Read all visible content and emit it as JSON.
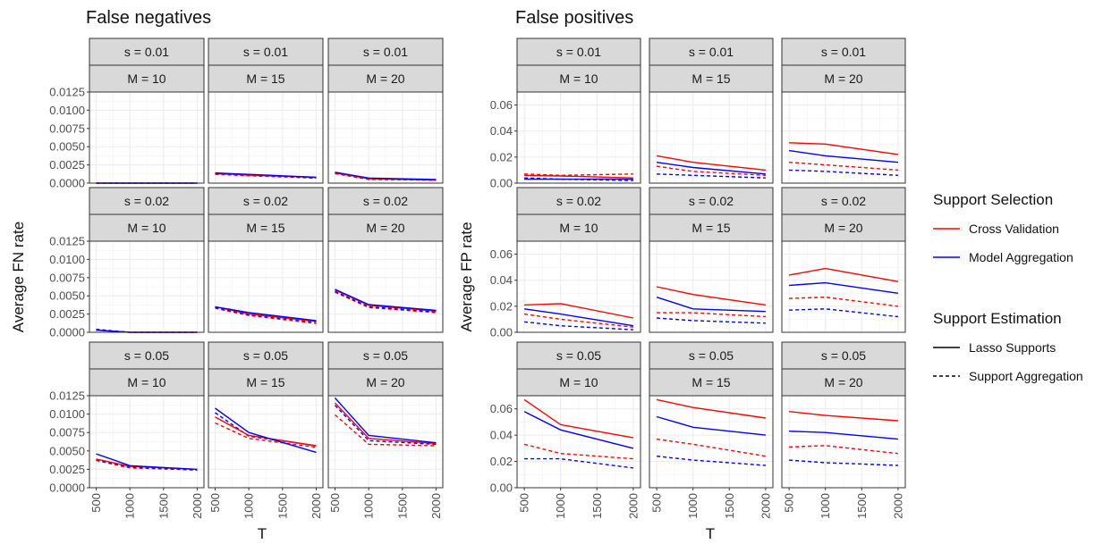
{
  "chart_data": [
    {
      "type": "line",
      "title": "False negatives",
      "xlabel": "T",
      "ylabel": "Average FN rate",
      "x": [
        500,
        1000,
        2000
      ],
      "x_ticks": [
        "500",
        "1000",
        "1500",
        "2000"
      ],
      "x_tick_values": [
        500,
        1000,
        1500,
        2000
      ],
      "ylim": [
        0,
        0.0125
      ],
      "y_ticks": [
        "0.0000",
        "0.0025",
        "0.0050",
        "0.0075",
        "0.0100",
        "0.0125"
      ],
      "y_tick_values": [
        0,
        0.0025,
        0.005,
        0.0075,
        0.01,
        0.0125
      ],
      "grid": true,
      "panels": [
        {
          "s_label": "s = 0.01",
          "m_label": "M = 10",
          "series": {
            "cv_lasso": [
              0.0,
              0.0,
              0.0
            ],
            "ma_lasso": [
              0.0,
              0.0,
              0.0
            ],
            "cv_agg": [
              0.0,
              0.0,
              0.0
            ],
            "ma_agg": [
              0.0,
              0.0,
              0.0
            ]
          }
        },
        {
          "s_label": "s = 0.01",
          "m_label": "M = 15",
          "series": {
            "cv_lasso": [
              0.0013,
              0.0011,
              0.0008
            ],
            "ma_lasso": [
              0.0014,
              0.0012,
              0.0008
            ],
            "cv_agg": [
              0.0012,
              0.001,
              0.0007
            ],
            "ma_agg": [
              0.0013,
              0.0011,
              0.0007
            ]
          }
        },
        {
          "s_label": "s = 0.01",
          "m_label": "M = 20",
          "series": {
            "cv_lasso": [
              0.0014,
              0.0006,
              0.0004
            ],
            "ma_lasso": [
              0.0015,
              0.0007,
              0.0005
            ],
            "cv_agg": [
              0.0013,
              0.0005,
              0.0004
            ],
            "ma_agg": [
              0.0014,
              0.0006,
              0.0004
            ]
          }
        },
        {
          "s_label": "s = 0.02",
          "m_label": "M = 10",
          "series": {
            "cv_lasso": [
              0.0003,
              0.0,
              0.0
            ],
            "ma_lasso": [
              0.0003,
              0.0,
              0.0
            ],
            "cv_agg": [
              0.0004,
              0.0,
              0.0
            ],
            "ma_agg": [
              0.0004,
              0.0,
              0.0
            ]
          }
        },
        {
          "s_label": "s = 0.02",
          "m_label": "M = 15",
          "series": {
            "cv_lasso": [
              0.0035,
              0.0025,
              0.0015
            ],
            "ma_lasso": [
              0.0035,
              0.0027,
              0.0016
            ],
            "cv_agg": [
              0.0033,
              0.0023,
              0.0012
            ],
            "ma_agg": [
              0.0034,
              0.0024,
              0.0014
            ]
          }
        },
        {
          "s_label": "s = 0.02",
          "m_label": "M = 20",
          "series": {
            "cv_lasso": [
              0.0058,
              0.0037,
              0.0029
            ],
            "ma_lasso": [
              0.0059,
              0.0038,
              0.003
            ],
            "cv_agg": [
              0.0055,
              0.0034,
              0.0027
            ],
            "ma_agg": [
              0.0056,
              0.0035,
              0.0028
            ]
          }
        },
        {
          "s_label": "s = 0.05",
          "m_label": "M = 10",
          "series": {
            "cv_lasso": [
              0.0039,
              0.0029,
              0.0025
            ],
            "ma_lasso": [
              0.0046,
              0.003,
              0.0025
            ],
            "cv_agg": [
              0.0037,
              0.0027,
              0.0024
            ],
            "ma_agg": [
              0.0038,
              0.0028,
              0.0024
            ]
          }
        },
        {
          "s_label": "s = 0.05",
          "m_label": "M = 15",
          "series": {
            "cv_lasso": [
              0.0096,
              0.0071,
              0.0057
            ],
            "ma_lasso": [
              0.0108,
              0.0075,
              0.0048
            ],
            "cv_agg": [
              0.0088,
              0.0067,
              0.0055
            ],
            "ma_agg": [
              0.0102,
              0.007,
              0.0057
            ]
          }
        },
        {
          "s_label": "s = 0.05",
          "m_label": "M = 20",
          "series": {
            "cv_lasso": [
              0.0115,
              0.0067,
              0.006
            ],
            "ma_lasso": [
              0.0122,
              0.0071,
              0.0061
            ],
            "cv_agg": [
              0.0099,
              0.0059,
              0.0057
            ],
            "ma_agg": [
              0.0112,
              0.0064,
              0.0059
            ]
          }
        }
      ]
    },
    {
      "type": "line",
      "title": "False positives",
      "xlabel": "T",
      "ylabel": "Average FP rate",
      "x": [
        500,
        1000,
        2000
      ],
      "x_ticks": [
        "500",
        "1000",
        "1500",
        "2000"
      ],
      "x_tick_values": [
        500,
        1000,
        1500,
        2000
      ],
      "ylim": [
        0,
        0.07
      ],
      "y_ticks": [
        "0.00",
        "0.02",
        "0.04",
        "0.06"
      ],
      "y_tick_values": [
        0,
        0.02,
        0.04,
        0.06
      ],
      "grid": true,
      "panels": [
        {
          "s_label": "s = 0.01",
          "m_label": "M = 10",
          "series": {
            "cv_lasso": [
              0.006,
              0.0055,
              0.004
            ],
            "ma_lasso": [
              0.003,
              0.003,
              0.003
            ],
            "cv_agg": [
              0.007,
              0.006,
              0.007
            ],
            "ma_agg": [
              0.004,
              0.003,
              0.002
            ]
          }
        },
        {
          "s_label": "s = 0.01",
          "m_label": "M = 15",
          "series": {
            "cv_lasso": [
              0.021,
              0.016,
              0.01
            ],
            "ma_lasso": [
              0.016,
              0.012,
              0.007
            ],
            "cv_agg": [
              0.013,
              0.009,
              0.006
            ],
            "ma_agg": [
              0.007,
              0.006,
              0.004
            ]
          }
        },
        {
          "s_label": "s = 0.01",
          "m_label": "M = 20",
          "series": {
            "cv_lasso": [
              0.031,
              0.03,
              0.022
            ],
            "ma_lasso": [
              0.025,
              0.021,
              0.016
            ],
            "cv_agg": [
              0.016,
              0.014,
              0.01
            ],
            "ma_agg": [
              0.01,
              0.009,
              0.006
            ]
          }
        },
        {
          "s_label": "s = 0.02",
          "m_label": "M = 10",
          "series": {
            "cv_lasso": [
              0.021,
              0.022,
              0.011
            ],
            "ma_lasso": [
              0.018,
              0.014,
              0.005
            ],
            "cv_agg": [
              0.014,
              0.01,
              0.004
            ],
            "ma_agg": [
              0.008,
              0.005,
              0.002
            ]
          }
        },
        {
          "s_label": "s = 0.02",
          "m_label": "M = 15",
          "series": {
            "cv_lasso": [
              0.035,
              0.029,
              0.021
            ],
            "ma_lasso": [
              0.027,
              0.018,
              0.016
            ],
            "cv_agg": [
              0.015,
              0.015,
              0.012
            ],
            "ma_agg": [
              0.011,
              0.009,
              0.007
            ]
          }
        },
        {
          "s_label": "s = 0.02",
          "m_label": "M = 20",
          "series": {
            "cv_lasso": [
              0.044,
              0.049,
              0.039
            ],
            "ma_lasso": [
              0.036,
              0.038,
              0.03
            ],
            "cv_agg": [
              0.026,
              0.027,
              0.02
            ],
            "ma_agg": [
              0.017,
              0.018,
              0.012
            ]
          }
        },
        {
          "s_label": "s = 0.05",
          "m_label": "M = 10",
          "series": {
            "cv_lasso": [
              0.067,
              0.048,
              0.038
            ],
            "ma_lasso": [
              0.058,
              0.044,
              0.03
            ],
            "cv_agg": [
              0.033,
              0.026,
              0.022
            ],
            "ma_agg": [
              0.022,
              0.022,
              0.015
            ]
          }
        },
        {
          "s_label": "s = 0.05",
          "m_label": "M = 15",
          "series": {
            "cv_lasso": [
              0.067,
              0.061,
              0.053
            ],
            "ma_lasso": [
              0.054,
              0.046,
              0.04
            ],
            "cv_agg": [
              0.037,
              0.033,
              0.024
            ],
            "ma_agg": [
              0.024,
              0.021,
              0.017
            ]
          }
        },
        {
          "s_label": "s = 0.05",
          "m_label": "M = 20",
          "series": {
            "cv_lasso": [
              0.058,
              0.055,
              0.051
            ],
            "ma_lasso": [
              0.043,
              0.042,
              0.037
            ],
            "cv_agg": [
              0.031,
              0.032,
              0.026
            ],
            "ma_agg": [
              0.021,
              0.019,
              0.017
            ]
          }
        }
      ]
    }
  ],
  "legend": {
    "placement": "right",
    "color_title": "Support Selection",
    "color_items": [
      {
        "label": "Cross Validation",
        "color": "#ff0000"
      },
      {
        "label": "Model Aggregation",
        "color": "#0000ff"
      }
    ],
    "linetype_title": "Support Estimation",
    "linetype_items": [
      {
        "label": "Lasso Supports",
        "dash": "solid"
      },
      {
        "label": "Support Aggregation",
        "dash": "dashed"
      }
    ]
  },
  "series_styles": {
    "cv_lasso": {
      "color": "#ff0000",
      "dash": "solid"
    },
    "ma_lasso": {
      "color": "#0000ff",
      "dash": "solid"
    },
    "cv_agg": {
      "color": "#ff0000",
      "dash": "dashed"
    },
    "ma_agg": {
      "color": "#0000ff",
      "dash": "dashed"
    }
  }
}
